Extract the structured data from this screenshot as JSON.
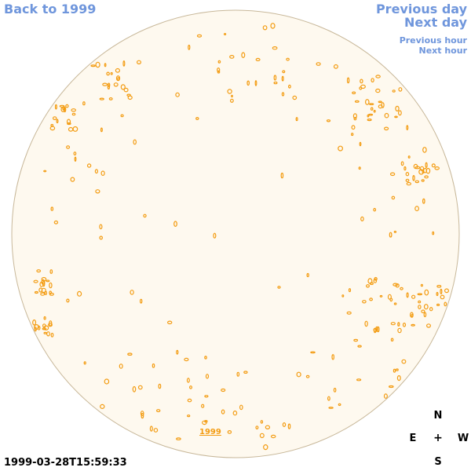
{
  "nav": {
    "back": "Back to 1999",
    "previous_day": "Previous day",
    "next_day": "Next day",
    "previous_hour": "Previous hour",
    "next_hour": "Next hour"
  },
  "timestamp": "1999-03-28T15:59:33",
  "compass": {
    "north": "N",
    "east": "E",
    "center": "+",
    "west": "W",
    "south": "S"
  },
  "region_label": "1999",
  "colors": {
    "disk_fill": "#fef9ef",
    "disk_outline": "#c8b89a",
    "feature": "#f39c12",
    "link": "#6f96dc"
  }
}
